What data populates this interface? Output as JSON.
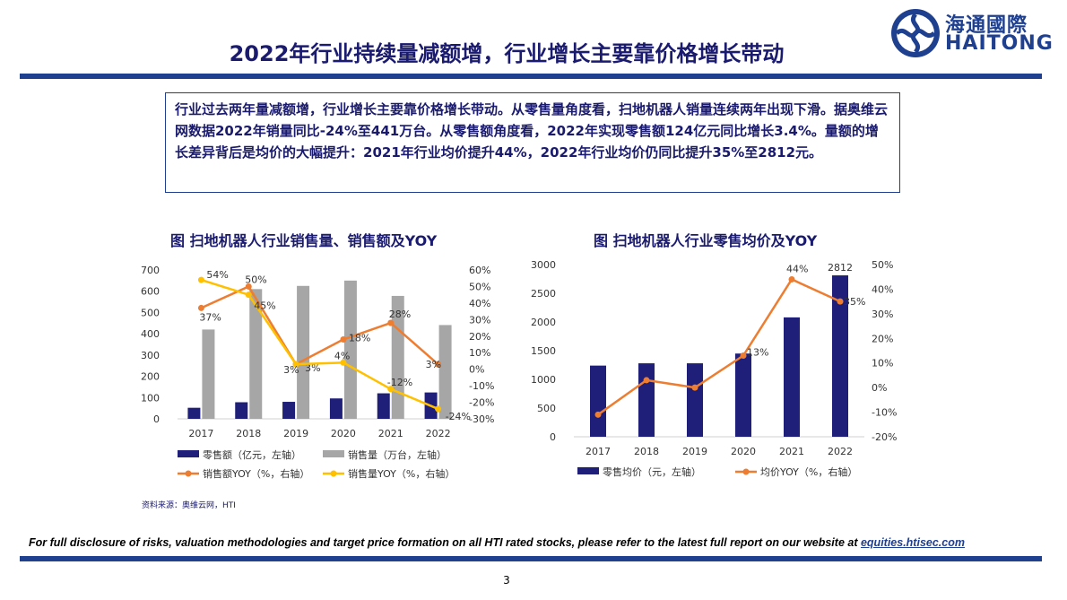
{
  "header": {
    "title": "2022年行业持续量减额增，行业增长主要靠价格增长带动",
    "logo_cn": "海通國際",
    "logo_en": "HAITONG"
  },
  "summary": {
    "text": "行业过去两年量减额增，行业增长主要靠价格增长带动。从零售量角度看，扫地机器人销量连续两年出现下滑。据奥维云网数据2022年销量同比-24%至441万台。从零售额角度看，2022年实现零售额124亿元同比增长3.4%。量额的增长差异背后是均价的大幅提升：2021年行业均价提升44%，2022年行业均价仍同比提升35%至2812元。"
  },
  "source": "资料来源：奥维云网，HTI",
  "footer": {
    "disclaimer": "For full disclosure of risks, valuation methodologies and target price formation on all HTI rated stocks, please refer to the latest full report on our website at",
    "link": "equities.htisec.com",
    "page": "3"
  },
  "colors": {
    "navy": "#1f1f7a",
    "gray": "#a6a6a6",
    "orange": "#ed7d31",
    "yellow": "#ffc000",
    "brand": "#1f3f8f"
  },
  "chart_data": [
    {
      "type": "bar",
      "title": "图 扫地机器人行业销售量、销售额及YOY",
      "categories": [
        "2017",
        "2018",
        "2019",
        "2020",
        "2021",
        "2022"
      ],
      "y_left": {
        "ticks": [
          "0",
          "100",
          "200",
          "300",
          "400",
          "500",
          "600",
          "700"
        ],
        "ylim": [
          0,
          700
        ]
      },
      "y_right": {
        "ticks": [
          "-30%",
          "-20%",
          "-10%",
          "0%",
          "10%",
          "20%",
          "30%",
          "40%",
          "50%",
          "60%"
        ],
        "ylim": [
          -30,
          60
        ]
      },
      "series": [
        {
          "name": "零售额（亿元，左轴）",
          "type": "bar",
          "axis": "left",
          "color": "#1f1f7a",
          "values": [
            52,
            78,
            80,
            96,
            120,
            124
          ]
        },
        {
          "name": "销售量（万台，左轴）",
          "type": "bar",
          "axis": "left",
          "color": "#a6a6a6",
          "values": [
            420,
            610,
            625,
            650,
            578,
            441
          ]
        },
        {
          "name": "销售额YOY（%，右轴）",
          "type": "line",
          "axis": "right",
          "color": "#ed7d31",
          "values": [
            37,
            50,
            3,
            18,
            28,
            3
          ],
          "labels": [
            "37%",
            "50%",
            "3%",
            "18%",
            "28%",
            "3%"
          ]
        },
        {
          "name": "销售量YOY（%，右轴）",
          "type": "line",
          "axis": "right",
          "color": "#ffc000",
          "values": [
            54,
            45,
            3,
            4,
            -12,
            -24
          ],
          "labels": [
            "54%",
            "45%",
            "3%",
            "4%",
            "-12%",
            "-24%"
          ]
        }
      ]
    },
    {
      "type": "bar",
      "title": "图 扫地机器人行业零售均价及YOY",
      "categories": [
        "2017",
        "2018",
        "2019",
        "2020",
        "2021",
        "2022"
      ],
      "y_left": {
        "ticks": [
          "0",
          "500",
          "1000",
          "1500",
          "2000",
          "2500",
          "3000"
        ],
        "ylim": [
          0,
          3000
        ]
      },
      "y_right": {
        "ticks": [
          "-20%",
          "-10%",
          "0%",
          "10%",
          "20%",
          "30%",
          "40%",
          "50%"
        ],
        "ylim": [
          -20,
          50
        ]
      },
      "series": [
        {
          "name": "零售均价（元，左轴）",
          "type": "bar",
          "axis": "left",
          "color": "#1f1f7a",
          "values": [
            1240,
            1280,
            1280,
            1450,
            2080,
            2812
          ],
          "labels": [
            "",
            "",
            "",
            "",
            "",
            "2812"
          ]
        },
        {
          "name": "均价YOY（%，右轴）",
          "type": "line",
          "axis": "right",
          "color": "#ed7d31",
          "values": [
            -11,
            3,
            0,
            13,
            44,
            35
          ],
          "labels": [
            "",
            "",
            "",
            "13%",
            "44%",
            "35%"
          ]
        }
      ]
    }
  ]
}
